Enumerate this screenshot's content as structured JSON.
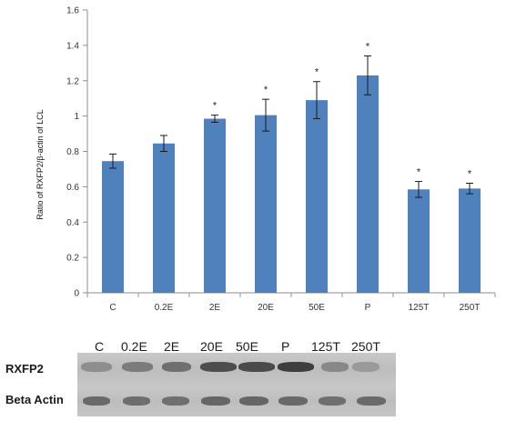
{
  "chart_data": {
    "type": "bar",
    "categories": [
      "C",
      "0.2E",
      "2E",
      "20E",
      "50E",
      "P",
      "125T",
      "250T"
    ],
    "values": [
      0.745,
      0.845,
      0.985,
      1.005,
      1.09,
      1.23,
      0.585,
      0.59
    ],
    "errors": [
      0.04,
      0.045,
      0.02,
      0.09,
      0.105,
      0.11,
      0.045,
      0.03
    ],
    "significant": [
      false,
      false,
      true,
      true,
      true,
      true,
      true,
      true
    ],
    "significance_marker": "*",
    "title": "",
    "xlabel": "",
    "ylabel": "Ratio of RXFP2/β-actin of LCL",
    "ylim": [
      0,
      1.6
    ],
    "yticks": [
      "0",
      "0.2",
      "0.4",
      "0.6",
      "0.8",
      "1",
      "1.2",
      "1.4",
      "1.6"
    ],
    "bar_color": "#4f81bd",
    "grid": false,
    "legend": "none"
  },
  "blot": {
    "lane_labels": [
      "C",
      "0.2E",
      "2E",
      "20E",
      "50E",
      "P",
      "125T",
      "250T"
    ],
    "rows": [
      {
        "label": "RXFP2"
      },
      {
        "label": "Beta Actin"
      }
    ]
  }
}
